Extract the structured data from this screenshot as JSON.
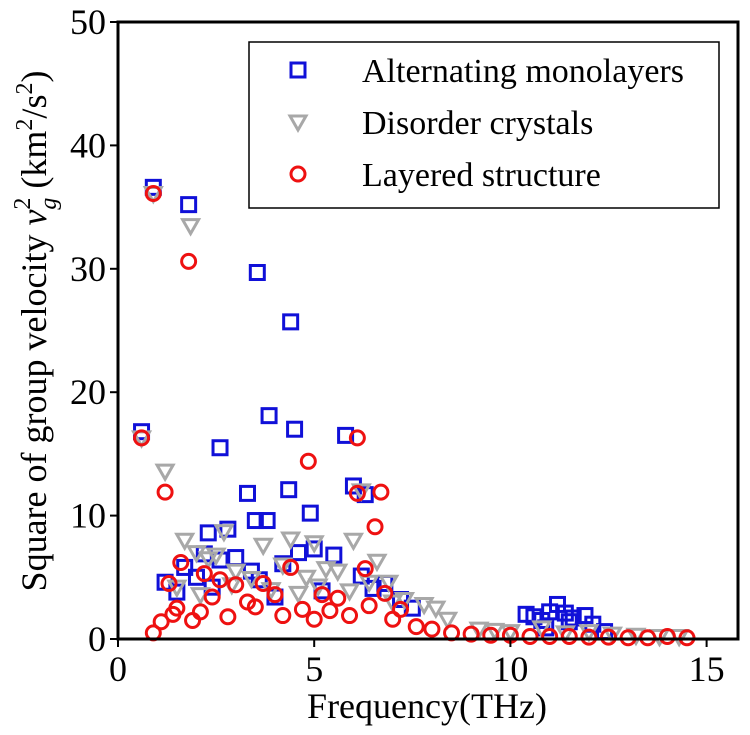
{
  "chart_data": {
    "type": "scatter",
    "xlabel": "Frequency(THz)",
    "ylabel": {
      "main": "Square of group velocity ",
      "v": "v",
      "sub": "g",
      "sup": "2",
      "unit_open": " (km",
      "unit_sup1": "2",
      "unit_mid": "/s",
      "unit_sup2": "2",
      "unit_close": ")"
    },
    "xlim": [
      0,
      15.8
    ],
    "ylim": [
      0,
      50
    ],
    "xticks": [
      0,
      5,
      10,
      15
    ],
    "yticks": [
      0,
      10,
      20,
      30,
      40,
      50
    ],
    "xtick_labels": [
      "0",
      "5",
      "10",
      "15"
    ],
    "ytick_labels": [
      "0",
      "10",
      "20",
      "30",
      "40",
      "50"
    ],
    "grid": false,
    "legend_position": "top-right",
    "series": [
      {
        "name": "Alternating monolayers",
        "marker": "square",
        "color": "#1010d8",
        "x": [
          0.6,
          0.9,
          1.8,
          3.55,
          4.4,
          3.85,
          4.5,
          5.8,
          2.6,
          4.35,
          3.3,
          6.0,
          6.3,
          4.9,
          3.5,
          3.8,
          2.3,
          2.8,
          5.0,
          2.2,
          4.6,
          1.2,
          1.7,
          2.0,
          2.6,
          3.0,
          3.4,
          4.2,
          5.5,
          6.2,
          6.8,
          7.2,
          1.5,
          2.4,
          3.6,
          4.0,
          5.2,
          6.5,
          7.5,
          10.4,
          10.6,
          10.8,
          11.0,
          11.2,
          11.4,
          11.6,
          11.9,
          12.1,
          12.4,
          10.9,
          11.5
        ],
        "y": [
          16.8,
          36.6,
          35.2,
          29.7,
          25.7,
          18.1,
          17.0,
          16.5,
          15.5,
          12.1,
          11.8,
          12.4,
          11.7,
          10.2,
          9.6,
          9.6,
          8.6,
          8.9,
          7.3,
          6.9,
          7.0,
          4.6,
          5.8,
          5.0,
          6.4,
          6.6,
          5.5,
          6.1,
          6.8,
          5.1,
          4.5,
          3.2,
          3.8,
          4.2,
          4.8,
          3.4,
          3.9,
          4.1,
          2.5,
          2.0,
          1.8,
          1.5,
          2.2,
          2.8,
          2.1,
          1.7,
          1.9,
          1.2,
          0.6,
          0.9,
          1.4
        ]
      },
      {
        "name": "Disorder crystals",
        "marker": "triangle-down",
        "color": "#a8a8a8",
        "x": [
          0.6,
          0.9,
          1.2,
          1.85,
          1.7,
          2.0,
          2.3,
          2.7,
          3.0,
          3.7,
          4.4,
          5.0,
          5.3,
          6.0,
          6.2,
          6.6,
          4.8,
          4.2,
          3.4,
          2.5,
          1.5,
          5.6,
          6.9,
          7.3,
          7.8,
          8.1,
          2.1,
          2.9,
          3.9,
          4.6,
          5.1,
          5.9,
          6.4,
          7.0,
          8.4,
          9.2,
          9.6,
          10.0,
          10.8,
          11.4,
          12.0,
          12.6,
          13.2,
          13.8,
          14.3
        ],
        "y": [
          16.3,
          36.1,
          13.6,
          33.5,
          8.0,
          7.0,
          6.5,
          8.7,
          5.5,
          7.6,
          8.1,
          7.8,
          5.7,
          8.0,
          12.0,
          6.3,
          5.0,
          6.0,
          4.9,
          6.8,
          4.2,
          5.5,
          4.6,
          3.2,
          2.8,
          2.5,
          3.6,
          4.4,
          4.0,
          3.7,
          4.3,
          3.9,
          4.6,
          3.0,
          1.6,
          0.8,
          0.7,
          0.6,
          0.9,
          0.5,
          0.6,
          0.4,
          0.3,
          0.2,
          0.2
        ]
      },
      {
        "name": "Layered structure",
        "marker": "circle",
        "color": "#ee1111",
        "x": [
          0.6,
          0.9,
          1.8,
          6.1,
          4.85,
          6.1,
          6.7,
          1.2,
          6.55,
          1.6,
          2.2,
          2.6,
          3.0,
          3.7,
          4.4,
          5.2,
          6.3,
          1.3,
          1.5,
          2.4,
          3.3,
          4.0,
          5.6,
          6.8,
          7.2,
          0.9,
          1.1,
          1.4,
          1.9,
          2.1,
          2.8,
          3.5,
          4.2,
          4.7,
          5.0,
          5.4,
          5.9,
          6.4,
          7.0,
          7.6,
          8.0,
          8.5,
          9.0,
          9.5,
          10.0,
          10.5,
          11.0,
          11.5,
          12.0,
          12.5,
          13.0,
          13.5,
          14.0,
          14.5
        ],
        "y": [
          16.3,
          36.1,
          30.6,
          16.3,
          14.4,
          11.8,
          11.9,
          11.9,
          9.1,
          6.2,
          5.3,
          4.8,
          4.4,
          4.5,
          5.8,
          3.6,
          5.7,
          4.5,
          2.5,
          3.4,
          3.0,
          3.6,
          3.3,
          3.7,
          2.4,
          0.5,
          1.4,
          2.0,
          1.5,
          2.2,
          1.8,
          2.6,
          1.9,
          2.4,
          1.6,
          2.3,
          1.9,
          2.7,
          1.6,
          1.0,
          0.8,
          0.5,
          0.4,
          0.3,
          0.3,
          0.2,
          0.2,
          0.2,
          0.15,
          0.15,
          0.1,
          0.1,
          0.2,
          0.1
        ]
      }
    ]
  }
}
